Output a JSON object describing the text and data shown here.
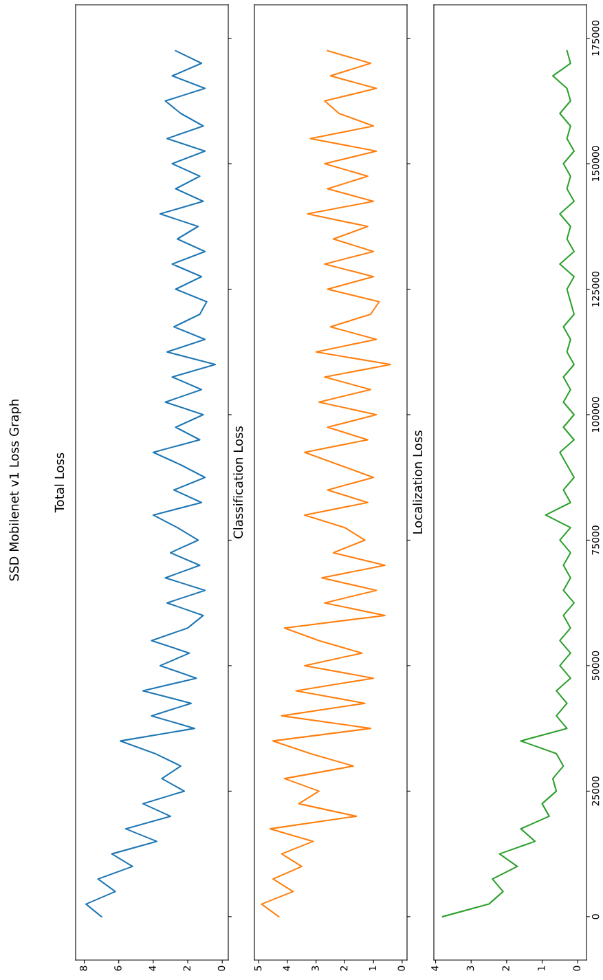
{
  "chart_data": [
    {
      "type": "line",
      "title": "Total Loss",
      "orientation": "horizontal",
      "x": [
        0,
        2500,
        5000,
        7500,
        10000,
        12500,
        15000,
        17500,
        20000,
        22500,
        25000,
        27500,
        30000,
        32500,
        35000,
        37500,
        40000,
        42500,
        45000,
        47500,
        50000,
        52500,
        55000,
        57500,
        60000,
        62500,
        65000,
        67500,
        70000,
        72500,
        75000,
        77500,
        80000,
        82500,
        85000,
        87500,
        90000,
        92500,
        95000,
        97500,
        100000,
        102500,
        105000,
        107500,
        110000,
        112500,
        115000,
        117500,
        120000,
        122500,
        125000,
        127500,
        130000,
        132500,
        135000,
        137500,
        140000,
        142500,
        145000,
        147500,
        150000,
        152500,
        155000,
        157500,
        160000,
        162500,
        165000,
        167500,
        170000,
        172500
      ],
      "ylim": [
        -8650,
        181650
      ],
      "yticks": [
        0,
        25000,
        50000,
        75000,
        100000,
        125000,
        150000,
        175000
      ],
      "xlim": [
        8.5,
        -0.35
      ],
      "xticks": [
        8,
        6,
        4,
        2,
        0
      ],
      "tick_labels": "x",
      "grid": false,
      "legend": false,
      "series": [
        {
          "color": "#1f77b4",
          "values": [
            7.0,
            7.9,
            6.2,
            7.2,
            5.2,
            6.4,
            3.8,
            5.6,
            3.0,
            4.6,
            2.2,
            3.5,
            2.4,
            3.9,
            5.9,
            1.6,
            4.1,
            1.8,
            4.6,
            1.5,
            3.6,
            1.9,
            4.1,
            2.0,
            1.1,
            3.2,
            1.0,
            3.3,
            1.3,
            3.0,
            1.4,
            2.6,
            4.0,
            1.2,
            2.8,
            1.0,
            2.4,
            4.0,
            1.3,
            2.7,
            1.1,
            3.3,
            1.2,
            2.9,
            0.4,
            3.2,
            1.0,
            2.8,
            1.3,
            0.9,
            2.7,
            1.2,
            2.9,
            1.0,
            2.6,
            1.4,
            3.6,
            1.1,
            2.7,
            1.3,
            2.9,
            1.0,
            3.2,
            1.1,
            2.4,
            3.3,
            1.0,
            2.9,
            1.2,
            2.7
          ]
        }
      ]
    },
    {
      "type": "line",
      "title": "Classification Loss",
      "orientation": "horizontal",
      "x": [
        0,
        2500,
        5000,
        7500,
        10000,
        12500,
        15000,
        17500,
        20000,
        22500,
        25000,
        27500,
        30000,
        32500,
        35000,
        37500,
        40000,
        42500,
        45000,
        47500,
        50000,
        52500,
        55000,
        57500,
        60000,
        62500,
        65000,
        67500,
        70000,
        72500,
        75000,
        77500,
        80000,
        82500,
        85000,
        87500,
        90000,
        92500,
        95000,
        97500,
        100000,
        102500,
        105000,
        107500,
        110000,
        112500,
        115000,
        117500,
        120000,
        122500,
        125000,
        127500,
        130000,
        132500,
        135000,
        137500,
        140000,
        142500,
        145000,
        147500,
        150000,
        152500,
        155000,
        157500,
        160000,
        162500,
        165000,
        167500,
        170000,
        172500
      ],
      "ylim": [
        -8650,
        181650
      ],
      "yticks": [
        0,
        25000,
        50000,
        75000,
        100000,
        125000,
        150000,
        175000
      ],
      "xlim": [
        5.15,
        -0.17
      ],
      "xticks": [
        5,
        4,
        3,
        2,
        1,
        0
      ],
      "tick_labels": "x",
      "grid": false,
      "legend": false,
      "series": [
        {
          "color": "#ff7f0e",
          "values": [
            4.3,
            4.9,
            3.8,
            4.5,
            3.5,
            4.2,
            3.1,
            4.6,
            1.6,
            3.6,
            2.9,
            4.1,
            1.7,
            3.2,
            4.5,
            1.1,
            4.2,
            1.3,
            3.7,
            1.0,
            3.4,
            1.4,
            2.9,
            4.1,
            0.6,
            2.7,
            0.9,
            2.8,
            0.6,
            2.4,
            1.3,
            2.0,
            3.4,
            1.2,
            2.6,
            1.0,
            2.2,
            3.4,
            1.2,
            2.6,
            0.9,
            2.9,
            1.1,
            2.7,
            0.4,
            3.0,
            0.9,
            2.5,
            1.1,
            0.8,
            2.6,
            1.0,
            2.7,
            1.0,
            2.4,
            1.2,
            3.3,
            1.0,
            2.6,
            1.2,
            2.7,
            0.9,
            3.2,
            1.0,
            2.2,
            2.7,
            0.9,
            2.5,
            1.1,
            2.6
          ]
        }
      ]
    },
    {
      "type": "line",
      "title": "Localization Loss",
      "orientation": "horizontal",
      "x": [
        0,
        2500,
        5000,
        7500,
        10000,
        12500,
        15000,
        17500,
        20000,
        22500,
        25000,
        27500,
        30000,
        32500,
        35000,
        37500,
        40000,
        42500,
        45000,
        47500,
        50000,
        52500,
        55000,
        57500,
        60000,
        62500,
        65000,
        67500,
        70000,
        72500,
        75000,
        77500,
        80000,
        82500,
        85000,
        87500,
        90000,
        92500,
        95000,
        97500,
        100000,
        102500,
        105000,
        107500,
        110000,
        112500,
        115000,
        117500,
        120000,
        122500,
        125000,
        127500,
        130000,
        132500,
        135000,
        137500,
        140000,
        142500,
        145000,
        147500,
        150000,
        152500,
        155000,
        157500,
        160000,
        162500,
        165000,
        167500,
        170000,
        172500
      ],
      "ylim": [
        -8650,
        181650
      ],
      "yticks": [
        0,
        25000,
        50000,
        75000,
        100000,
        125000,
        150000,
        175000
      ],
      "xlim": [
        4.05,
        -0.25
      ],
      "xticks": [
        4,
        3,
        2,
        1,
        0
      ],
      "grid": false,
      "legend": false,
      "annotations": [
        "SSD Mobilenet v1 Loss Graph"
      ],
      "series": [
        {
          "color": "#2ca02c",
          "values": [
            3.8,
            2.5,
            2.1,
            2.4,
            1.7,
            2.2,
            1.2,
            1.6,
            0.8,
            1.0,
            0.6,
            0.7,
            0.4,
            0.6,
            1.6,
            0.3,
            0.6,
            0.3,
            0.6,
            0.2,
            0.5,
            0.2,
            0.5,
            0.2,
            0.4,
            0.1,
            0.4,
            0.2,
            0.4,
            0.2,
            0.5,
            0.2,
            0.9,
            0.2,
            0.4,
            0.1,
            0.3,
            0.5,
            0.1,
            0.4,
            0.1,
            0.4,
            0.2,
            0.4,
            0.1,
            0.3,
            0.2,
            0.4,
            0.1,
            0.2,
            0.3,
            0.1,
            0.5,
            0.1,
            0.3,
            0.2,
            0.5,
            0.1,
            0.3,
            0.2,
            0.4,
            0.1,
            0.3,
            0.2,
            0.5,
            0.2,
            0.3,
            0.7,
            0.2,
            0.3
          ]
        }
      ]
    }
  ]
}
